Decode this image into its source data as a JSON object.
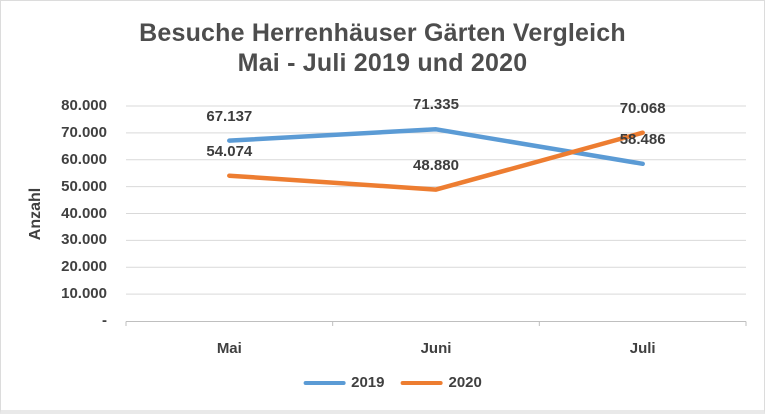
{
  "window": {
    "background": "#ffffff",
    "border_color": "#dcdcdc"
  },
  "chart_data": {
    "type": "line",
    "title": "Besuche Herrenhäuser Gärten Vergleich",
    "subtitle": "Mai - Juli 2019 und 2020",
    "ylabel": "Anzahl",
    "xlabel": "",
    "categories": [
      "Mai",
      "Juni",
      "Juli"
    ],
    "series": [
      {
        "name": "2019",
        "color": "#5B9BD5",
        "values": [
          67137,
          71335,
          58486
        ],
        "labels": [
          "67.137",
          "71.335",
          "58.486"
        ]
      },
      {
        "name": "2020",
        "color": "#ED7D31",
        "values": [
          54074,
          48880,
          70068
        ],
        "labels": [
          "54.074",
          "48.880",
          "70.068"
        ]
      }
    ],
    "ylim": [
      0,
      80000
    ],
    "ytick_step": 10000,
    "ytick_labels": [
      "-",
      "10.000",
      "20.000",
      "30.000",
      "40.000",
      "50.000",
      "60.000",
      "70.000",
      "80.000"
    ],
    "grid": true,
    "gridline_color": "#D9D9D9",
    "axis_line_color": "#BFBFBF",
    "text_color": "#404040",
    "title_color": "#4d4d4d",
    "legend_position": "bottom"
  }
}
